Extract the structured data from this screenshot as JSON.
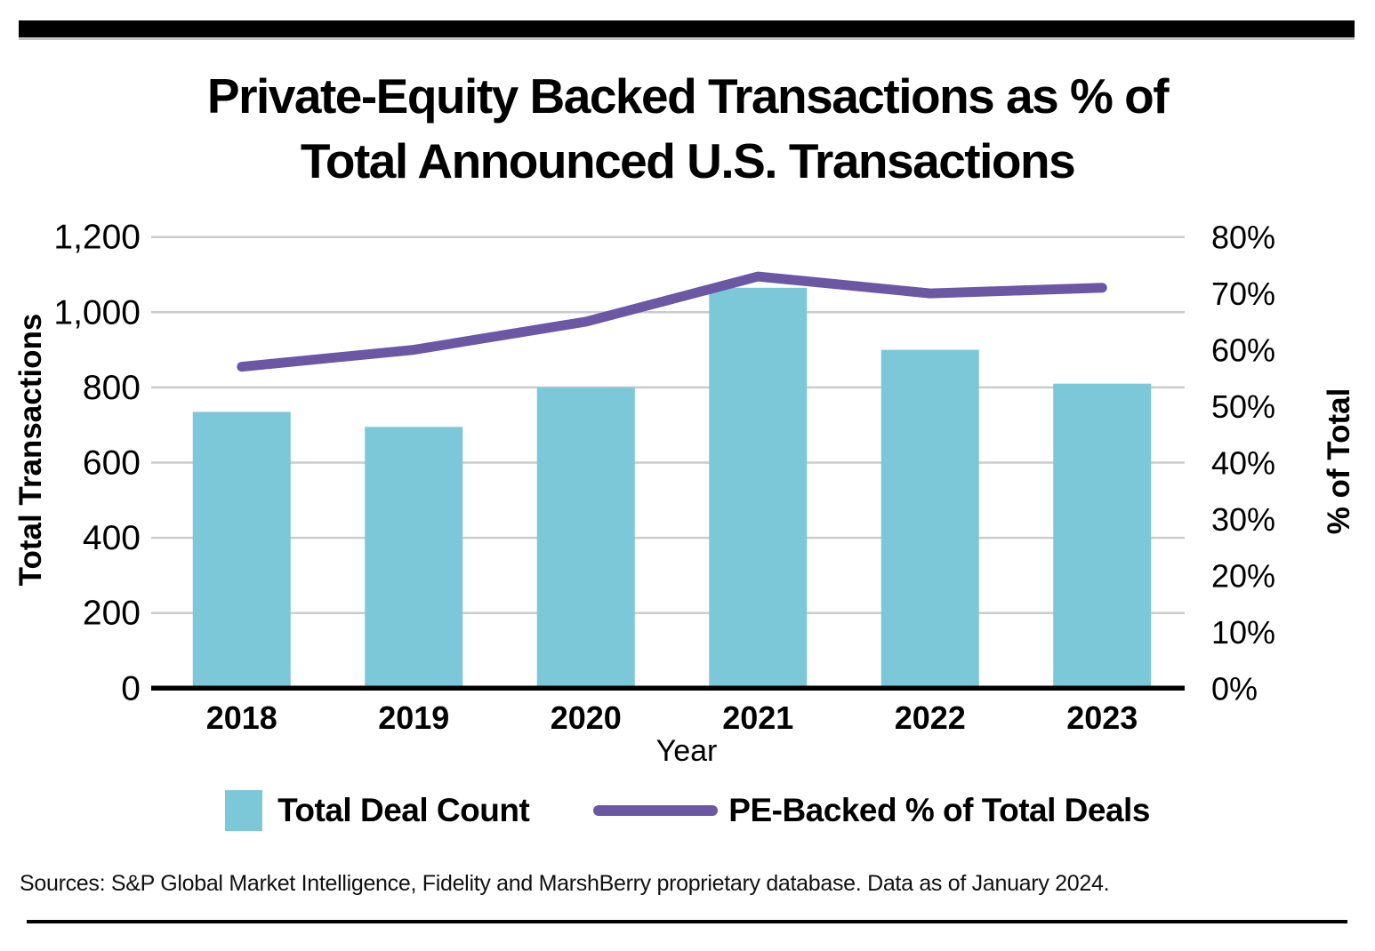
{
  "page": {
    "title_line1": "Private-Equity Backed Transactions as % of",
    "title_line2": "Total Announced U.S. Transactions",
    "source_note": "Sources: S&P Global Market Intelligence, Fidelity and MarshBerry proprietary database. Data as of January 2024."
  },
  "legend": {
    "bar_label": "Total Deal Count",
    "line_label": "PE-Backed % of Total Deals"
  },
  "colors": {
    "bar": "#7CC8D9",
    "line": "#6C57A4",
    "gridline": "#CBCBCB",
    "axis_line": "#000000"
  },
  "chart_data": {
    "type": "bar",
    "subtype": "combo bar + line, dual axis",
    "title": "Private-Equity Backed Transactions as % of Total Announced U.S. Transactions",
    "categories": [
      "2018",
      "2019",
      "2020",
      "2021",
      "2022",
      "2023"
    ],
    "series": [
      {
        "name": "Total Deal Count",
        "type": "bar",
        "axis": "left",
        "values": [
          735,
          695,
          800,
          1065,
          900,
          810
        ]
      },
      {
        "name": "PE-Backed % of Total Deals",
        "type": "line",
        "axis": "right",
        "values": [
          57,
          60,
          65,
          73,
          70,
          71
        ]
      }
    ],
    "xlabel": "Year",
    "ylabel_left": "Total Transactions",
    "ylabel_right": "% of Total",
    "ylim_left": [
      0,
      1200
    ],
    "ylim_right_percent": [
      0,
      80
    ],
    "yticks_left": [
      "0",
      "200",
      "400",
      "600",
      "800",
      "1,000",
      "1,200"
    ],
    "yticks_right": [
      "0%",
      "10%",
      "20%",
      "30%",
      "40%",
      "50%",
      "60%",
      "70%",
      "80%"
    ],
    "grid": "horizontal gridlines at left-axis steps of 200",
    "legend_position": "bottom"
  }
}
